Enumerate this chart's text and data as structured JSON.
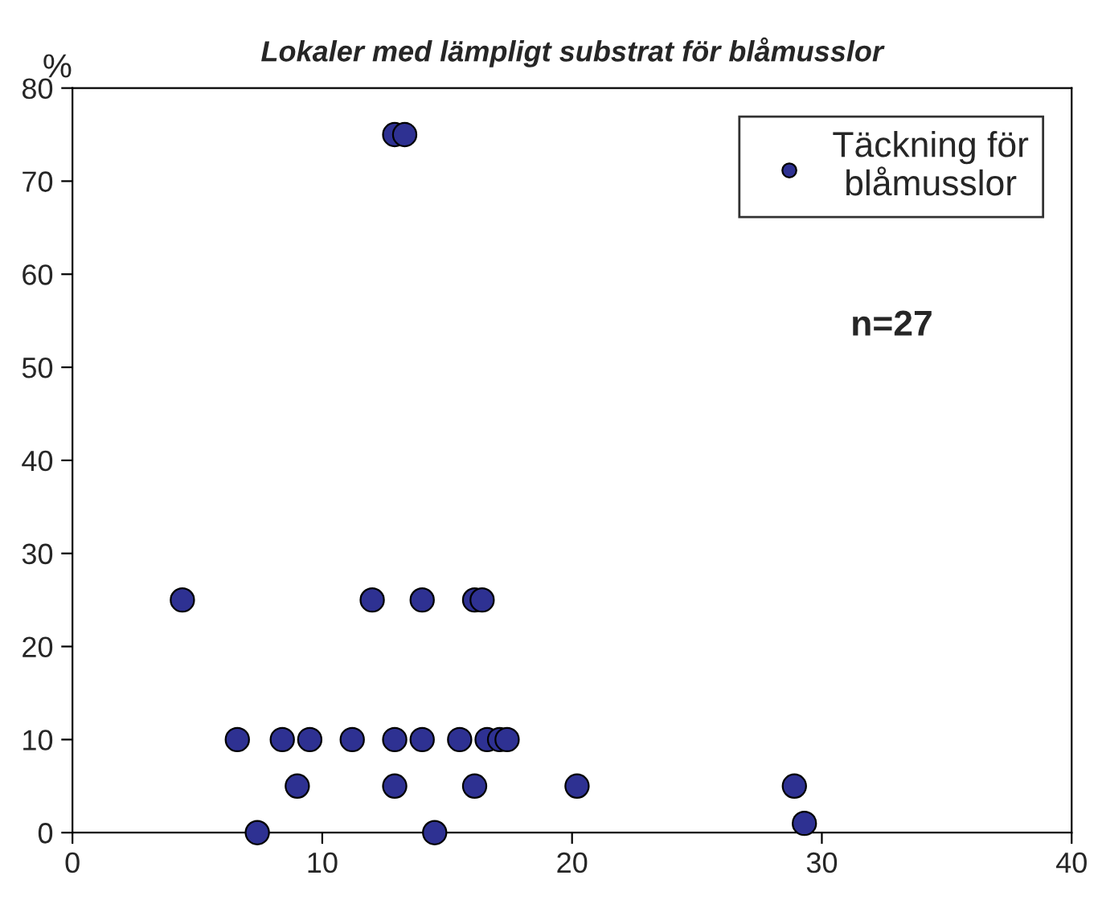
{
  "chart_data": {
    "type": "scatter",
    "title": "Lokaler med lämpligt substrat för blåmusslor",
    "ylabel": "%",
    "annotations": [
      "n=27"
    ],
    "series": [
      {
        "name": "Täckning för\nblåmusslor",
        "color": "#2e3192",
        "x": [
          4.4,
          6.6,
          7.4,
          8.4,
          9.0,
          9.5,
          11.2,
          12.0,
          12.9,
          13.3,
          12.9,
          12.9,
          14.0,
          14.0,
          14.5,
          15.5,
          16.1,
          16.4,
          16.1,
          16.6,
          17.1,
          17.4,
          20.2,
          28.9,
          29.3
        ],
        "values": [
          25,
          10,
          0,
          10,
          5,
          10,
          10,
          25,
          75,
          75,
          10,
          5,
          25,
          10,
          0,
          10,
          25,
          25,
          5,
          10,
          10,
          10,
          5,
          5,
          1
        ]
      }
    ],
    "xlim": [
      0,
      40
    ],
    "xticks": [
      0,
      10,
      20,
      30,
      40
    ],
    "ylim": [
      0,
      80
    ],
    "yticks": [
      0,
      10,
      20,
      30,
      40,
      50,
      60,
      70,
      80
    ],
    "grid": false,
    "legend": "top right",
    "marker": "circle"
  }
}
